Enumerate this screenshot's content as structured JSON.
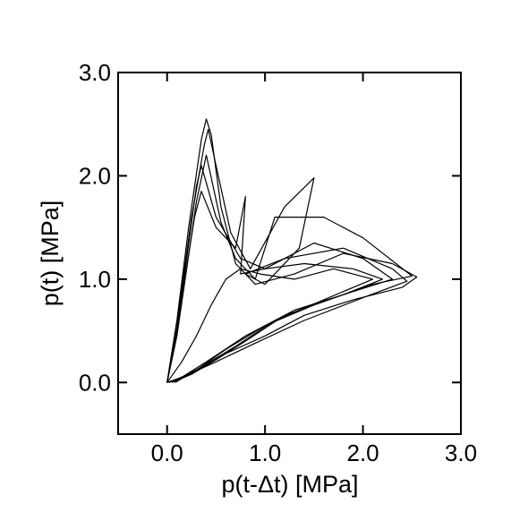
{
  "chart_data": {
    "type": "line",
    "title": "",
    "xlabel": "p(t-Δt) [MPa]",
    "ylabel": "p(t) [MPa]",
    "xlim": [
      -0.5,
      3.0
    ],
    "ylim": [
      -0.5,
      3.0
    ],
    "x_ticks": [
      0.0,
      1.0,
      2.0,
      3.0
    ],
    "x_tick_labels": [
      "0.0",
      "1.0",
      "2.0",
      "3.0"
    ],
    "y_ticks": [
      0.0,
      1.0,
      2.0,
      3.0
    ],
    "y_tick_labels": [
      "0.0",
      "1.0",
      "2.0",
      "3.0"
    ],
    "grid": false,
    "legend": "none",
    "line_color": "#000000",
    "series": [
      {
        "x": [
          0.0,
          0.1,
          0.22,
          0.35,
          0.4,
          0.45,
          0.55,
          0.7,
          0.9,
          1.3,
          1.8,
          2.3,
          2.55,
          2.4,
          1.9,
          1.4,
          1.0,
          0.6,
          0.3,
          0.1,
          0.0
        ],
        "y": [
          0.0,
          0.6,
          1.5,
          2.35,
          2.55,
          2.4,
          1.7,
          1.15,
          0.95,
          1.05,
          1.25,
          1.15,
          1.02,
          0.92,
          0.8,
          0.65,
          0.45,
          0.28,
          0.12,
          0.03,
          0.0
        ]
      },
      {
        "x": [
          0.0,
          0.12,
          0.25,
          0.38,
          0.42,
          0.5,
          0.65,
          0.85,
          1.2,
          1.5,
          1.35,
          1.0,
          0.8,
          1.2,
          1.8,
          2.3,
          2.45,
          2.0,
          1.4,
          0.9,
          0.5,
          0.2,
          0.02
        ],
        "y": [
          0.0,
          0.7,
          1.6,
          2.3,
          2.45,
          2.1,
          1.45,
          1.1,
          1.7,
          1.98,
          1.3,
          0.95,
          1.05,
          1.2,
          1.3,
          1.1,
          0.98,
          0.82,
          0.6,
          0.38,
          0.2,
          0.07,
          0.0
        ]
      },
      {
        "x": [
          0.0,
          0.1,
          0.2,
          0.3,
          0.35,
          0.5,
          0.75,
          1.0,
          1.4,
          1.9,
          2.2,
          1.8,
          1.2,
          0.8,
          0.5,
          0.25,
          0.05
        ],
        "y": [
          0.0,
          0.5,
          1.2,
          1.9,
          2.1,
          1.6,
          1.2,
          1.1,
          1.15,
          1.1,
          1.0,
          0.85,
          0.65,
          0.4,
          0.22,
          0.08,
          0.0
        ]
      },
      {
        "x": [
          0.0,
          0.08,
          0.18,
          0.28,
          0.35,
          0.5,
          0.7,
          0.8,
          0.75,
          1.0,
          1.5,
          2.0,
          2.3,
          1.9,
          1.3,
          0.8,
          0.4,
          0.15,
          0.0
        ],
        "y": [
          0.0,
          0.4,
          1.0,
          1.6,
          1.85,
          1.5,
          1.3,
          1.8,
          1.05,
          1.1,
          1.35,
          1.2,
          1.0,
          0.88,
          0.7,
          0.45,
          0.2,
          0.05,
          0.0
        ]
      },
      {
        "x": [
          0.0,
          0.1,
          0.2,
          0.3,
          0.4,
          0.55,
          0.7,
          0.9,
          1.1,
          1.6,
          2.0,
          2.5,
          2.1,
          1.5,
          1.0,
          0.6,
          0.3,
          0.08
        ],
        "y": [
          0.0,
          0.45,
          1.1,
          1.75,
          2.2,
          1.55,
          1.2,
          1.0,
          1.6,
          1.6,
          1.4,
          1.03,
          0.95,
          0.75,
          0.55,
          0.32,
          0.12,
          0.0
        ]
      },
      {
        "x": [
          0.0,
          0.15,
          0.3,
          0.45,
          0.6,
          0.75,
          0.95,
          1.3,
          1.7,
          2.1,
          1.6,
          1.1,
          0.7,
          0.35,
          0.1
        ],
        "y": [
          0.0,
          0.2,
          0.45,
          0.75,
          1.0,
          1.1,
          1.05,
          1.0,
          1.1,
          1.0,
          0.8,
          0.6,
          0.35,
          0.15,
          0.02
        ]
      }
    ]
  }
}
